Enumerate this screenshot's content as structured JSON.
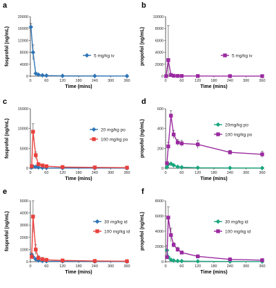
{
  "colors": {
    "blue": "#2e75b6",
    "magenta": "#9b2aa0",
    "red": "#e8413c",
    "green": "#1aa67e",
    "axis": "#333333",
    "error": "#555555"
  },
  "chart_data": [
    {
      "panel": "a",
      "type": "line",
      "ylabel": "fosprofol (ng/mL)",
      "xlabel": "Time (mins)",
      "ylim": [
        0,
        20000
      ],
      "yticks": [
        0,
        4000,
        8000,
        12000,
        16000,
        20000
      ],
      "xlim": [
        0,
        360
      ],
      "xticks": [
        0,
        60,
        120,
        180,
        240,
        300,
        360
      ],
      "legend_position": "right",
      "series": [
        {
          "name": "5 mg/kg iv",
          "color": "blue",
          "marker": "diamond",
          "x": [
            2,
            10,
            20,
            30,
            45,
            60,
            120,
            240,
            360
          ],
          "y": [
            16500,
            8000,
            900,
            500,
            300,
            200,
            100,
            60,
            40
          ],
          "err": [
            1200,
            2500,
            0,
            0,
            0,
            0,
            0,
            0,
            0
          ]
        }
      ]
    },
    {
      "panel": "b",
      "type": "line",
      "ylabel": "propofol (ng/mL)",
      "xlabel": "Time (mins)",
      "ylim": [
        0,
        10000
      ],
      "yticks": [
        0,
        2000,
        4000,
        6000,
        8000,
        10000
      ],
      "xlim": [
        0,
        360
      ],
      "xticks": [
        0,
        60,
        120,
        180,
        240,
        300,
        360
      ],
      "legend_position": "right",
      "series": [
        {
          "name": "5 mg/kg iv",
          "color": "magenta",
          "marker": "square",
          "x": [
            2,
            10,
            20,
            30,
            45,
            60,
            120,
            240,
            360
          ],
          "y": [
            0,
            2700,
            200,
            60,
            40,
            30,
            20,
            10,
            5
          ],
          "err": [
            0,
            5800,
            0,
            0,
            0,
            0,
            0,
            0,
            0
          ]
        }
      ]
    },
    {
      "panel": "c",
      "type": "line",
      "ylabel": "fosprofol (ng/mL)",
      "xlabel": "Time (mins)",
      "ylim": [
        0,
        15000
      ],
      "yticks": [
        0,
        5000,
        10000,
        15000
      ],
      "xlim": [
        0,
        360
      ],
      "xticks": [
        0,
        60,
        120,
        180,
        240,
        300,
        360
      ],
      "legend_position": "right",
      "series": [
        {
          "name": "20 mg/kg po",
          "color": "blue",
          "marker": "diamond",
          "x": [
            5,
            10,
            20,
            30,
            45,
            60,
            120,
            240,
            360
          ],
          "y": [
            200,
            450,
            350,
            200,
            120,
            80,
            50,
            40,
            30
          ],
          "err": [
            0,
            0,
            0,
            0,
            0,
            0,
            0,
            0,
            0
          ]
        },
        {
          "name": "100 mg/kg po",
          "color": "red",
          "marker": "square",
          "x": [
            5,
            10,
            20,
            30,
            45,
            60,
            120,
            240,
            360
          ],
          "y": [
            500,
            9200,
            3300,
            1000,
            700,
            500,
            300,
            200,
            150
          ],
          "err": [
            0,
            2000,
            800,
            400,
            0,
            0,
            0,
            0,
            0
          ]
        }
      ]
    },
    {
      "panel": "d",
      "type": "line",
      "ylabel": "propofol (ng/mL)",
      "xlabel": "Time (mins)",
      "ylim": [
        0,
        600
      ],
      "yticks": [
        0,
        200,
        400,
        600
      ],
      "xlim": [
        0,
        360
      ],
      "xticks": [
        0,
        60,
        120,
        180,
        240,
        300,
        360
      ],
      "legend_position": "right",
      "series": [
        {
          "name": "20mg/kg po",
          "color": "green",
          "marker": "diamond",
          "x": [
            5,
            10,
            20,
            30,
            45,
            60,
            120,
            240,
            360
          ],
          "y": [
            10,
            40,
            45,
            30,
            15,
            10,
            5,
            3,
            2
          ],
          "err": [
            0,
            0,
            0,
            0,
            0,
            0,
            0,
            0,
            0
          ]
        },
        {
          "name": "100 mg/kg po",
          "color": "magenta",
          "marker": "square",
          "x": [
            5,
            10,
            20,
            30,
            45,
            60,
            120,
            240,
            360
          ],
          "y": [
            50,
            220,
            530,
            340,
            260,
            250,
            240,
            160,
            140
          ],
          "err": [
            0,
            40,
            50,
            40,
            30,
            30,
            40,
            20,
            30
          ]
        }
      ]
    },
    {
      "panel": "e",
      "type": "line",
      "ylabel": "fosprofol (ng/mL)",
      "xlabel": "Time (mins)",
      "ylim": [
        0,
        5000
      ],
      "yticks": [
        0,
        1000,
        2000,
        3000,
        4000,
        5000
      ],
      "xlim": [
        0,
        360
      ],
      "xticks": [
        0,
        60,
        120,
        180,
        240,
        300,
        360
      ],
      "legend_position": "right",
      "series": [
        {
          "name": "30 mg/kg id",
          "color": "blue",
          "marker": "diamond",
          "x": [
            5,
            10,
            20,
            30,
            45,
            60,
            120,
            240,
            360
          ],
          "y": [
            600,
            400,
            200,
            100,
            60,
            40,
            30,
            20,
            10
          ],
          "err": [
            0,
            0,
            0,
            0,
            0,
            0,
            0,
            0,
            0
          ]
        },
        {
          "name": "100 mg/kg id",
          "color": "red",
          "marker": "square",
          "x": [
            5,
            10,
            20,
            30,
            45,
            60,
            120,
            240,
            360
          ],
          "y": [
            400,
            3700,
            1000,
            300,
            200,
            150,
            100,
            60,
            40
          ],
          "err": [
            0,
            1300,
            400,
            200,
            150,
            0,
            0,
            0,
            0
          ]
        }
      ]
    },
    {
      "panel": "f",
      "type": "line",
      "ylabel": "propofol (ng/mL)",
      "xlabel": "Time (mins)",
      "ylim": [
        0,
        8000
      ],
      "yticks": [
        0,
        2000,
        4000,
        6000,
        8000
      ],
      "xlim": [
        0,
        360
      ],
      "xticks": [
        0,
        60,
        120,
        180,
        240,
        300,
        360
      ],
      "legend_position": "right",
      "series": [
        {
          "name": "30 mg/kg id",
          "color": "green",
          "marker": "diamond",
          "x": [
            5,
            10,
            20,
            30,
            45,
            60,
            120,
            240,
            360
          ],
          "y": [
            1500,
            600,
            250,
            150,
            100,
            80,
            50,
            30,
            20
          ],
          "err": [
            600,
            0,
            0,
            0,
            0,
            0,
            0,
            0,
            0
          ]
        },
        {
          "name": "100 mg/kg id",
          "color": "magenta",
          "marker": "square",
          "x": [
            5,
            10,
            20,
            30,
            45,
            60,
            120,
            240,
            360
          ],
          "y": [
            600,
            5800,
            3500,
            2200,
            1600,
            1200,
            700,
            300,
            200
          ],
          "err": [
            0,
            1400,
            900,
            300,
            300,
            200,
            0,
            0,
            0
          ]
        }
      ]
    }
  ]
}
